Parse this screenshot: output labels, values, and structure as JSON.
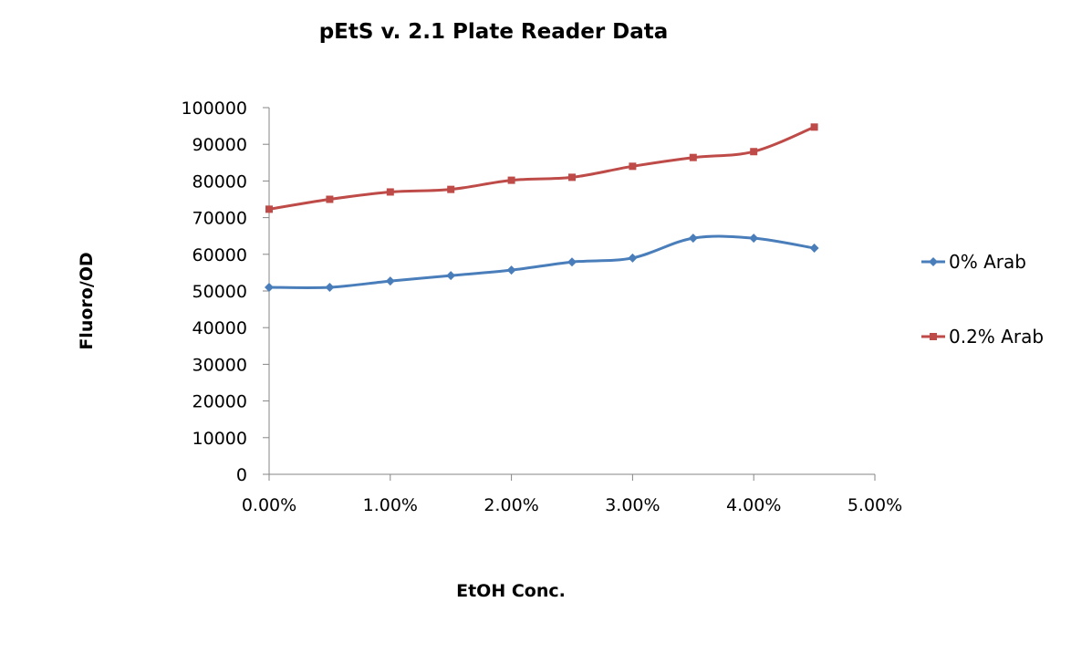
{
  "chart_data": {
    "type": "line",
    "title": "pEtS v. 2.1 Plate Reader Data",
    "xlabel": "EtOH Conc.",
    "ylabel": "Fluoro/OD",
    "x": [
      0.0,
      0.005,
      0.01,
      0.015,
      0.02,
      0.025,
      0.03,
      0.035,
      0.04,
      0.045
    ],
    "xlim": [
      0.0,
      0.05
    ],
    "ylim": [
      0,
      100000
    ],
    "x_ticks": [
      "0.00%",
      "1.00%",
      "2.00%",
      "3.00%",
      "4.00%",
      "5.00%"
    ],
    "y_ticks": [
      "0",
      "10000",
      "20000",
      "30000",
      "40000",
      "50000",
      "60000",
      "70000",
      "80000",
      "90000",
      "100000"
    ],
    "grid": false,
    "legend_position": "right",
    "series": [
      {
        "name": "0% Arab",
        "color": "#4a7ebb",
        "marker": "diamond",
        "values": [
          51000,
          51000,
          52700,
          54200,
          55700,
          57900,
          59000,
          64400,
          64400,
          61700
        ]
      },
      {
        "name": "0.2% Arab",
        "color": "#be4b48",
        "marker": "square",
        "values": [
          72300,
          75000,
          77000,
          77700,
          80200,
          81000,
          84000,
          86400,
          88000,
          94700
        ]
      }
    ]
  }
}
